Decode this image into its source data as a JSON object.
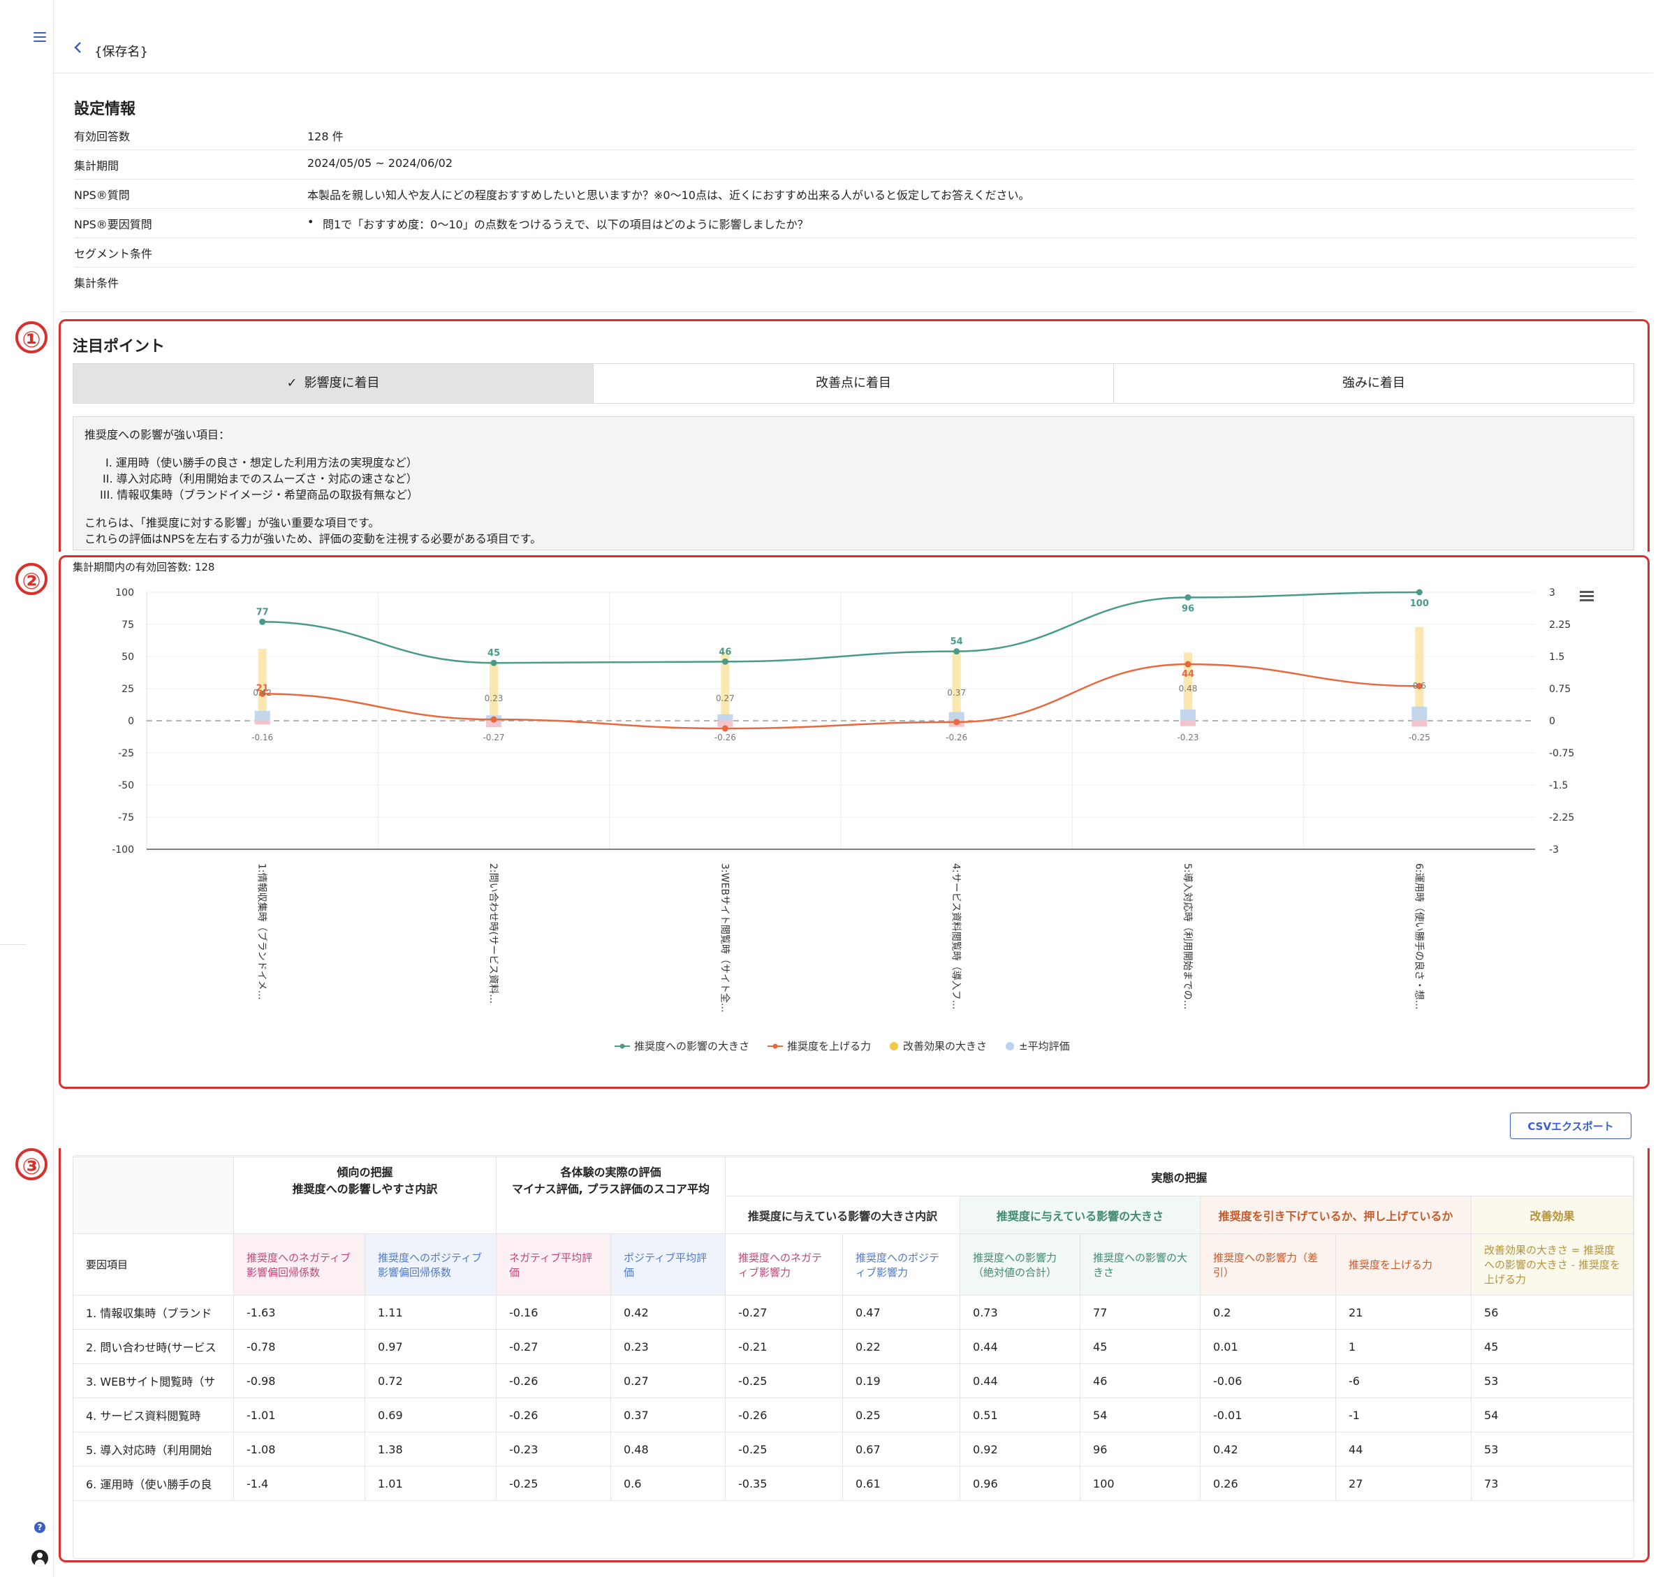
{
  "header": {
    "back_icon": "chevron-left-icon",
    "save_name": "{保存名}"
  },
  "settings": {
    "title": "設定情報",
    "rows": [
      {
        "label": "有効回答数",
        "value": "128 件"
      },
      {
        "label": "集計期間",
        "value": "2024/05/05 ~ 2024/06/02"
      },
      {
        "label": "NPS®質問",
        "value": "本製品を親しい知人や友人にどの程度おすすめしたいと思いますか？※0〜10点は、近くにおすすめ出来る人がいると仮定してお答えください。"
      },
      {
        "label": "NPS®要因質問",
        "value": "問1で「おすすめ度：0〜10」の点数をつけるうえで、以下の項目はどのように影響しましたか？"
      },
      {
        "label": "セグメント条件",
        "value": ""
      },
      {
        "label": "集計条件",
        "value": ""
      }
    ]
  },
  "annotations": {
    "one": "①",
    "two": "②",
    "three": "③"
  },
  "focus": {
    "title": "注目ポイント",
    "tabs": [
      "影響度に着目",
      "改善点に着目",
      "強みに着目"
    ],
    "info": {
      "heading": "推奨度への影響が強い項目：",
      "items": [
        "I. 運用時（使い勝手の良さ・想定した利用方法の実現度など）",
        "II. 導入対応時（利用開始までのスムーズさ・対応の速さなど）",
        "III. 情報収集時（ブランドイメージ・希望商品の取扱有無など）"
      ],
      "line1": "これらは、「推奨度に対する影響」が強い重要な項目です。",
      "line2": "これらの評価はNPSを左右する力が強いため、評価の変動を注視する必要がある項目です。"
    }
  },
  "chart_caption": "集計期間内の有効回答数: 128",
  "chart_data": {
    "type": "line",
    "categories": [
      "1:情報収集時（ブランドイメ…",
      "2:問い合わせ時(サービス資料…",
      "3:WEBサイト閲覧時（サイト全…",
      "4:サービス資料閲覧時（導入フ…",
      "5:導入対応時（利用開始までの…",
      "6:運用時（使い勝手の良さ・想…"
    ],
    "y_left": {
      "min": -100,
      "max": 100,
      "ticks": [
        "100",
        "75",
        "50",
        "25",
        "0",
        "-25",
        "-50",
        "-75",
        "-100"
      ]
    },
    "y_right": {
      "min": -3,
      "max": 3,
      "ticks": [
        "3",
        "2.25",
        "1.5",
        "0.75",
        "0",
        "-0.75",
        "-1.5",
        "-2.25",
        "-3"
      ]
    },
    "series": [
      {
        "name": "推奨度への影響の大きさ",
        "type": "line",
        "axis": "left",
        "color": "#4a9a8a",
        "values": [
          77,
          45,
          46,
          54,
          96,
          100
        ]
      },
      {
        "name": "推奨度を上げる力",
        "type": "line",
        "axis": "left",
        "color": "#e8683d",
        "values": [
          21,
          1,
          -6,
          -1,
          44,
          27
        ]
      },
      {
        "name": "改善効果の大きさ",
        "type": "bar",
        "axis": "left",
        "color": "#fbe7b0",
        "values": [
          56,
          45,
          53,
          54,
          53,
          73
        ]
      },
      {
        "name": "±平均評価",
        "type": "bar",
        "axis": "right",
        "color": "#bcd3f0",
        "neg_color": "#f2c4cc",
        "pos_values": [
          0.42,
          0.23,
          0.27,
          0.37,
          0.48,
          0.6
        ],
        "neg_values": [
          -0.16,
          -0.27,
          -0.26,
          -0.26,
          -0.23,
          -0.25
        ]
      }
    ],
    "labels": {
      "impact": [
        "77",
        "45",
        "46",
        "54",
        "96",
        "100"
      ],
      "raise": [
        "21",
        "",
        "",
        "",
        "44",
        ""
      ],
      "pos": [
        "0.42",
        "0.23",
        "0.27",
        "0.37",
        "0.48",
        "0.6"
      ],
      "neg": [
        "-0.16",
        "-0.27",
        "-0.26",
        "-0.26",
        "-0.23",
        "-0.25"
      ]
    },
    "legend": [
      "推奨度への影響の大きさ",
      "推奨度を上げる力",
      "改善効果の大きさ",
      "±平均評価"
    ],
    "menu_icon": "hamburger-icon"
  },
  "export": {
    "label": "CSVエクスポート"
  },
  "table": {
    "group_trend": {
      "line1": "傾向の把握",
      "line2": "推奨度への影響しやすさ内訳"
    },
    "group_eval": {
      "line1": "各体験の実際の評価",
      "line2": "マイナス評価, プラス評価のスコア平均"
    },
    "group_actual": "実態の把握",
    "sub_breakdown": "推奨度に与えている影響の大きさ内訳",
    "sub_size": "推奨度に与えている影響の大きさ",
    "sub_direction": "推奨度を引き下げているか、押し上げているか",
    "sub_improve": "改善効果",
    "col_item": "要因項目",
    "columns": [
      "推奨度へのネガティブ影響偏回帰係数",
      "推奨度へのポジティブ影響偏回帰係数",
      "ネガティブ平均評価",
      "ポジティブ平均評価",
      "推奨度へのネガティブ影響力",
      "推奨度へのポジティブ影響力",
      "推奨度への影響力（絶対値の合計）",
      "推奨度への影響の大きさ",
      "推奨度への影響力（差引）",
      "推奨度を上げる力",
      "改善効果の大きさ = 推奨度への影響の大きさ - 推奨度を上げる力"
    ],
    "rows": [
      [
        "1. 情報収集時（ブランド",
        "-1.63",
        "1.11",
        "-0.16",
        "0.42",
        "-0.27",
        "0.47",
        "0.73",
        "77",
        "0.2",
        "21",
        "56"
      ],
      [
        "2. 問い合わせ時(サービス",
        "-0.78",
        "0.97",
        "-0.27",
        "0.23",
        "-0.21",
        "0.22",
        "0.44",
        "45",
        "0.01",
        "1",
        "45"
      ],
      [
        "3. WEBサイト閲覧時（サ",
        "-0.98",
        "0.72",
        "-0.26",
        "0.27",
        "-0.25",
        "0.19",
        "0.44",
        "46",
        "-0.06",
        "-6",
        "53"
      ],
      [
        "4. サービス資料閲覧時",
        "-1.01",
        "0.69",
        "-0.26",
        "0.37",
        "-0.26",
        "0.25",
        "0.51",
        "54",
        "-0.01",
        "-1",
        "54"
      ],
      [
        "5. 導入対応時（利用開始",
        "-1.08",
        "1.38",
        "-0.23",
        "0.48",
        "-0.25",
        "0.67",
        "0.92",
        "96",
        "0.42",
        "44",
        "53"
      ],
      [
        "6. 運用時（使い勝手の良",
        "-1.4",
        "1.01",
        "-0.25",
        "0.6",
        "-0.35",
        "0.61",
        "0.96",
        "100",
        "0.26",
        "27",
        "73"
      ]
    ]
  },
  "colors": {
    "accent": "#3b5ec9",
    "annotation_red": "#d9302b",
    "teal": "#4a9a8a",
    "orange": "#e8683d",
    "yellow": "#f5c642",
    "lightblue": "#bcd3f0"
  }
}
